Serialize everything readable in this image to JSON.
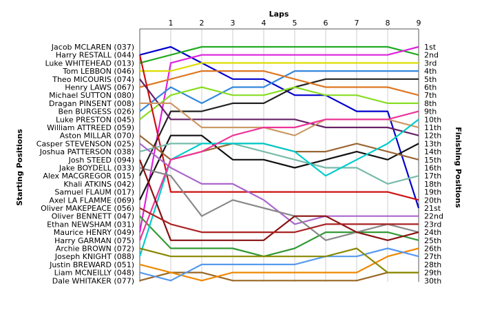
{
  "chart_data": {
    "type": "line",
    "title": "Laps",
    "xlabel": "Laps",
    "ylabel_left": "Starting Positions",
    "ylabel_right": "Finishing Positions",
    "x": [
      0,
      1,
      2,
      3,
      4,
      5,
      6,
      7,
      8,
      9
    ],
    "x_tick_labels": [
      "1",
      "2",
      "3",
      "4",
      "5",
      "6",
      "7",
      "8",
      "9"
    ],
    "ylim": [
      1,
      30
    ],
    "y_inverted": true,
    "grid": "vertical",
    "start_labels": [
      "Jacob MCLAREN (037)",
      "Harry RESTALL (044)",
      "Luke WHITEHEAD (013)",
      "Tom LEBBON (046)",
      "Theo MICOURIS (074)",
      "Henry LAWS (067)",
      "Michael SUTTON (080)",
      "Dragan PINSENT (008)",
      "Ben BURGESS (026)",
      "Luke PRESTON (045)",
      "William ATTREED (059)",
      "Aston MILLAR (070)",
      "Casper STEVENSON (025)",
      "Joshua PATTERSON (038)",
      "Josh STEED (094)",
      "Jake BOYDELL (033)",
      "Alex MACGREGOR (015)",
      "Khali ATKINS (042)",
      "Samuel FLAUM (017)",
      "Axel LA FLAMME (069)",
      "Oliver MAKEPEACE (056)",
      "Oliver BENNETT (047)",
      "Ethan NEWSHAM (031)",
      "Maurice HENRY (049)",
      "Harry GARMAN (075)",
      "Archie BROWN (072)",
      "Joseph KNIGHT (088)",
      "Justin BREWARD (051)",
      "Liam MCNEILLY (048)",
      "Dale WHITAKER (077)"
    ],
    "finish_labels": [
      "1st",
      "2nd",
      "3rd",
      "4th",
      "5th",
      "6th",
      "7th",
      "8th",
      "9th",
      "10th",
      "11th",
      "12th",
      "13th",
      "14th",
      "15th",
      "16th",
      "17th",
      "18th",
      "19th",
      "20th",
      "21st",
      "22nd",
      "23rd",
      "24th",
      "25th",
      "26th",
      "27th",
      "28th",
      "29th",
      "30th"
    ],
    "series": [
      {
        "color": "#0000cc",
        "values": [
          2,
          1,
          3,
          5,
          5,
          7,
          7,
          9,
          9,
          21
        ]
      },
      {
        "color": "#22aa22",
        "values": [
          3,
          2,
          1,
          1,
          1,
          1,
          1,
          1,
          1,
          2
        ]
      },
      {
        "color": "#dd22dd",
        "values": [
          24,
          3,
          2,
          2,
          2,
          2,
          2,
          2,
          2,
          1
        ]
      },
      {
        "color": "#dddd00",
        "values": [
          4,
          4,
          3,
          3,
          3,
          3,
          3,
          3,
          3,
          3
        ]
      },
      {
        "color": "#3388dd",
        "values": [
          9,
          6,
          8,
          6,
          6,
          4,
          4,
          4,
          4,
          4
        ]
      },
      {
        "color": "#222222",
        "values": [
          17,
          9,
          9,
          8,
          8,
          6,
          5,
          5,
          5,
          5
        ]
      },
      {
        "color": "#dd7722",
        "values": [
          6,
          5,
          4,
          4,
          4,
          5,
          6,
          6,
          6,
          7
        ]
      },
      {
        "color": "#88dd22",
        "values": [
          10,
          7,
          6,
          7,
          7,
          6,
          7,
          7,
          8,
          8
        ]
      },
      {
        "color": "#cc1111",
        "values": [
          2,
          19,
          19,
          19,
          19,
          19,
          19,
          19,
          19,
          20
        ]
      },
      {
        "color": "#662266",
        "values": [
          5,
          10,
          10,
          10,
          10,
          10,
          11,
          11,
          11,
          12
        ]
      },
      {
        "color": "#cc9966",
        "values": [
          8,
          8,
          11,
          11,
          11,
          12,
          10,
          10,
          10,
          11
        ]
      },
      {
        "color": "#111111",
        "values": [
          20,
          12,
          12,
          15,
          15,
          16,
          15,
          14,
          15,
          13
        ]
      },
      {
        "color": "#77bbaa",
        "values": [
          14,
          13,
          13,
          13,
          14,
          15,
          16,
          16,
          18,
          17
        ]
      },
      {
        "color": "#aa66cc",
        "values": [
          13,
          16,
          18,
          18,
          20,
          23,
          22,
          22,
          22,
          22
        ]
      },
      {
        "color": "#996633",
        "values": [
          12,
          15,
          14,
          13,
          13,
          14,
          14,
          13,
          14,
          15
        ]
      },
      {
        "color": "#339933",
        "values": [
          22,
          26,
          26,
          26,
          27,
          26,
          24,
          24,
          24,
          25
        ]
      },
      {
        "color": "#00cccc",
        "values": [
          27,
          15,
          13,
          13,
          13,
          14,
          17,
          15,
          13,
          10
        ]
      },
      {
        "color": "#ee3399",
        "values": [
          25,
          15,
          14,
          12,
          11,
          11,
          10,
          10,
          10,
          9
        ]
      },
      {
        "color": "#888888",
        "values": [
          16,
          17,
          22,
          20,
          21,
          22,
          25,
          24,
          23,
          24
        ]
      },
      {
        "color": "#996622",
        "values": [
          30,
          29,
          29,
          30,
          30,
          30,
          30,
          30,
          29,
          29
        ]
      },
      {
        "color": "#ee8800",
        "values": [
          28,
          29,
          30,
          29,
          29,
          29,
          29,
          29,
          27,
          26
        ]
      },
      {
        "color": "#5599ee",
        "values": [
          29,
          30,
          28,
          28,
          28,
          28,
          27,
          27,
          26,
          27
        ]
      },
      {
        "color": "#881111",
        "values": [
          15,
          25,
          25,
          25,
          25,
          22,
          22,
          24,
          25,
          24
        ]
      },
      {
        "color": "#aa2222",
        "values": [
          21,
          23,
          24,
          24,
          24,
          24,
          23,
          23,
          23,
          23
        ]
      },
      {
        "color": "#888800",
        "values": [
          26,
          27,
          27,
          27,
          27,
          27,
          27,
          26,
          29,
          29
        ]
      }
    ]
  }
}
